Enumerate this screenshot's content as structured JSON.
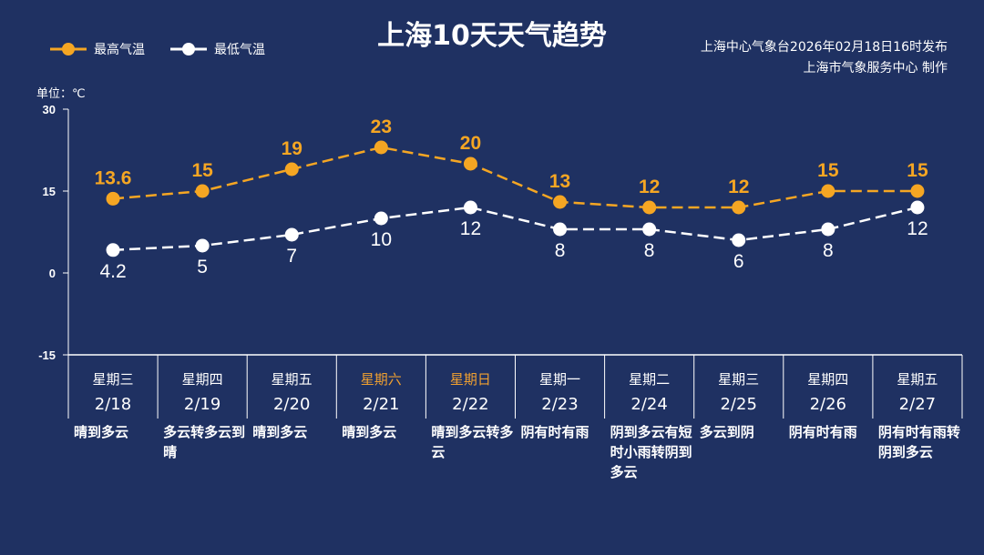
{
  "chart_data": {
    "type": "line",
    "title": "上海10天天气趋势",
    "ylabel": "单位：℃",
    "ylim": [
      -15,
      30
    ],
    "yticks": [
      30,
      15,
      0,
      -15
    ],
    "grid": false,
    "legend_position": "top-left",
    "categories": [
      "2/18",
      "2/19",
      "2/20",
      "2/21",
      "2/22",
      "2/23",
      "2/24",
      "2/25",
      "2/26",
      "2/27"
    ],
    "weekdays": [
      "星期三",
      "星期四",
      "星期五",
      "星期六",
      "星期日",
      "星期一",
      "星期二",
      "星期三",
      "星期四",
      "星期五"
    ],
    "weekend_flags": [
      false,
      false,
      false,
      true,
      true,
      false,
      false,
      false,
      false,
      false
    ],
    "weather": [
      "晴到多云",
      "多云转多云到晴",
      "晴到多云",
      "晴到多云",
      "晴到多云转多云",
      "阴有时有雨",
      "阴到多云有短时小雨转阴到多云",
      "多云到阴",
      "阴有时有雨",
      "阴有时有雨转阴到多云"
    ],
    "series": [
      {
        "name": "最高气温",
        "color": "#f5a623",
        "values": [
          13.6,
          15,
          19,
          23,
          20,
          13,
          12,
          12,
          15,
          15
        ]
      },
      {
        "name": "最低气温",
        "color": "#ffffff",
        "values": [
          4.2,
          5,
          7,
          10,
          12,
          8,
          8,
          6,
          8,
          12
        ]
      }
    ]
  },
  "source": {
    "line1": "上海中心气象台2026年02月18日16时发布",
    "line2": "上海市气象服务中心  制作"
  }
}
